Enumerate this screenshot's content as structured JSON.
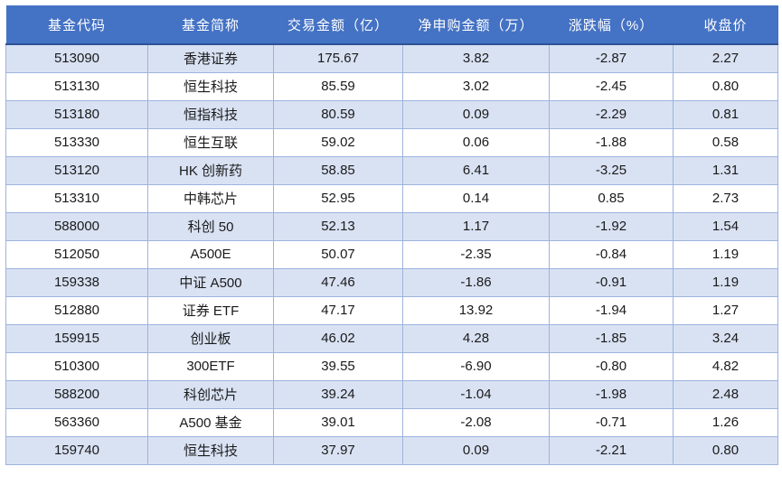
{
  "colors": {
    "header_bg": "#4472C4",
    "header_text": "#FFFFFF",
    "header_bottom_border": "#2E5395",
    "row_alt_bg": "#D9E2F3",
    "row_bg": "#FFFFFF",
    "border": "#9DB3DF",
    "cell_text": "#1A1A1A",
    "page_bg": "#FFFFFF"
  },
  "chart_data": {
    "type": "table",
    "title": "",
    "columns": [
      "基金代码",
      "基金简称",
      "交易金额（亿）",
      "净申购金额（万）",
      "涨跌幅（%）",
      "收盘价"
    ],
    "rows": [
      [
        "513090",
        "香港证券",
        "175.67",
        "3.82",
        "-2.87",
        "2.27"
      ],
      [
        "513130",
        "恒生科技",
        "85.59",
        "3.02",
        "-2.45",
        "0.80"
      ],
      [
        "513180",
        "恒指科技",
        "80.59",
        "0.09",
        "-2.29",
        "0.81"
      ],
      [
        "513330",
        "恒生互联",
        "59.02",
        "0.06",
        "-1.88",
        "0.58"
      ],
      [
        "513120",
        "HK 创新药",
        "58.85",
        "6.41",
        "-3.25",
        "1.31"
      ],
      [
        "513310",
        "中韩芯片",
        "52.95",
        "0.14",
        "0.85",
        "2.73"
      ],
      [
        "588000",
        "科创 50",
        "52.13",
        "1.17",
        "-1.92",
        "1.54"
      ],
      [
        "512050",
        "A500E",
        "50.07",
        "-2.35",
        "-0.84",
        "1.19"
      ],
      [
        "159338",
        "中证 A500",
        "47.46",
        "-1.86",
        "-0.91",
        "1.19"
      ],
      [
        "512880",
        "证券 ETF",
        "47.17",
        "13.92",
        "-1.94",
        "1.27"
      ],
      [
        "159915",
        "创业板",
        "46.02",
        "4.28",
        "-1.85",
        "3.24"
      ],
      [
        "510300",
        "300ETF",
        "39.55",
        "-6.90",
        "-0.80",
        "4.82"
      ],
      [
        "588200",
        "科创芯片",
        "39.24",
        "-1.04",
        "-1.98",
        "2.48"
      ],
      [
        "563360",
        "A500 基金",
        "39.01",
        "-2.08",
        "-0.71",
        "1.26"
      ],
      [
        "159740",
        "恒生科技",
        "37.97",
        "0.09",
        "-2.21",
        "0.80"
      ]
    ]
  }
}
